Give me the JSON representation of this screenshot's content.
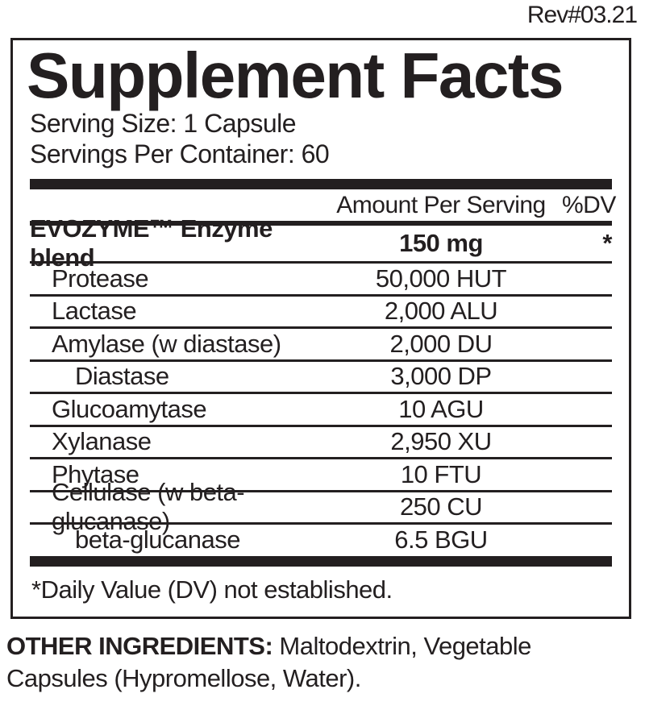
{
  "rev": "Rev#03.21",
  "panel": {
    "title": "Supplement Facts",
    "serving_size": "Serving Size: 1 Capsule",
    "servings_per_container": "Servings Per Container: 60",
    "header": {
      "amount": "Amount Per Serving",
      "dv": "%DV"
    },
    "blend": {
      "name": "EVOZYME™ Enzyme blend",
      "amount": "150 mg",
      "dv": "*"
    },
    "rows": [
      {
        "name": "Protease",
        "amount": "50,000 HUT",
        "dv": "",
        "indent": 1
      },
      {
        "name": "Lactase",
        "amount": "2,000 ALU",
        "dv": "",
        "indent": 1
      },
      {
        "name": "Amylase (w diastase)",
        "amount": "2,000 DU",
        "dv": "",
        "indent": 1
      },
      {
        "name": "Diastase",
        "amount": "3,000 DP",
        "dv": "",
        "indent": 2
      },
      {
        "name": "Glucoamytase",
        "amount": "10 AGU",
        "dv": "",
        "indent": 1
      },
      {
        "name": "Xylanase",
        "amount": "2,950 XU",
        "dv": "",
        "indent": 1
      },
      {
        "name": "Phytase",
        "amount": "10 FTU",
        "dv": "",
        "indent": 1
      },
      {
        "name": "Cellulase (w beta-glucanase)",
        "amount": "250 CU",
        "dv": "",
        "indent": 1
      },
      {
        "name": "beta-glucanase",
        "amount": "6.5 BGU",
        "dv": "",
        "indent": 2
      }
    ],
    "footnote": "*Daily Value (DV) not established."
  },
  "other_ingredients": {
    "label": "OTHER INGREDIENTS:",
    "text": " Maltodextrin, Vegetable Capsules (Hypromellose, Water)."
  },
  "colors": {
    "text": "#231f20",
    "bar": "#231f20",
    "background": "#ffffff"
  }
}
